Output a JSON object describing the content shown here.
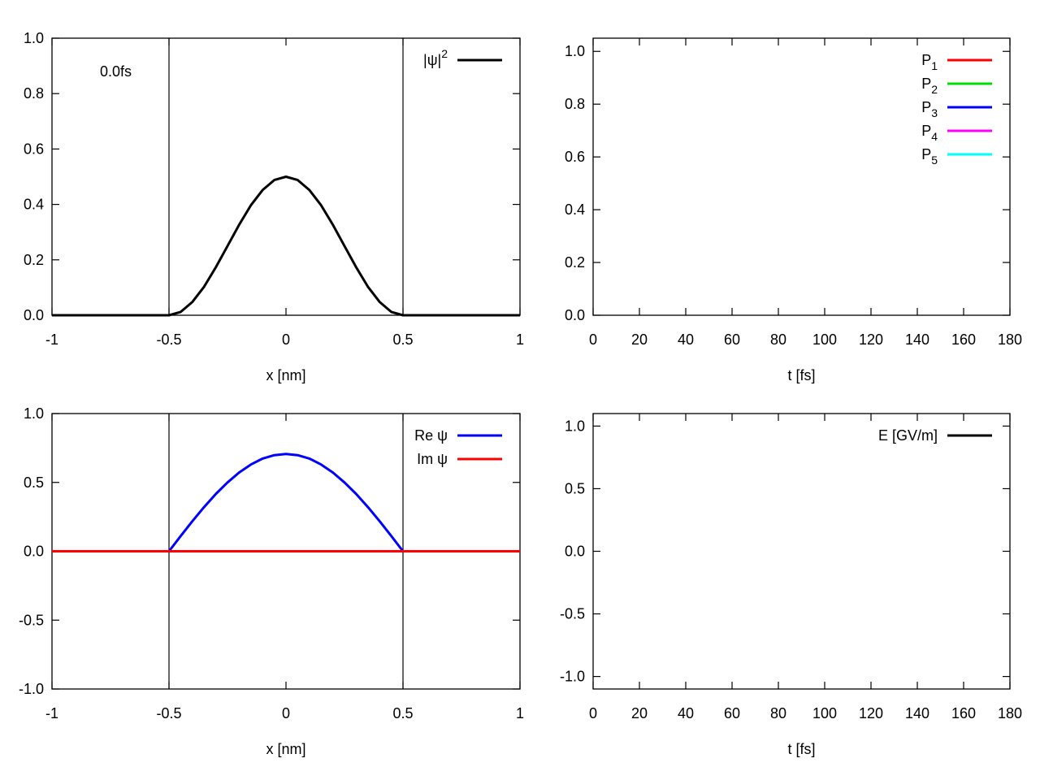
{
  "chart_data": [
    {
      "type": "line",
      "xlabel": "x [nm]",
      "ylabel": "",
      "xlim": [
        -1,
        1
      ],
      "ylim": [
        0,
        1
      ],
      "xticks": [
        "-1",
        "-0.5",
        "0",
        "0.5",
        "1"
      ],
      "xtick_values": [
        -1,
        -0.5,
        0,
        0.5,
        1
      ],
      "yticks": [
        "0.0",
        "0.2",
        "0.4",
        "0.6",
        "0.8",
        "1.0"
      ],
      "ytick_values": [
        0,
        0.2,
        0.4,
        0.6,
        0.8,
        1.0
      ],
      "annotation": "0.0fs",
      "vertical_lines": [
        -0.5,
        0.5
      ],
      "legend_position": "top-right",
      "series": [
        {
          "name": "|ψ|²",
          "legend_main": "|ψ|",
          "legend_sup": "2",
          "color": "#000000",
          "x": [
            -1,
            -0.5,
            -0.45,
            -0.4,
            -0.35,
            -0.3,
            -0.25,
            -0.2,
            -0.15,
            -0.1,
            -0.05,
            0,
            0.05,
            0.1,
            0.15,
            0.2,
            0.25,
            0.3,
            0.35,
            0.4,
            0.45,
            0.5,
            1
          ],
          "y": [
            0,
            0,
            0.012,
            0.048,
            0.103,
            0.173,
            0.25,
            0.327,
            0.397,
            0.452,
            0.488,
            0.5,
            0.488,
            0.452,
            0.397,
            0.327,
            0.25,
            0.173,
            0.103,
            0.048,
            0.012,
            0,
            0
          ]
        }
      ]
    },
    {
      "type": "line",
      "xlabel": "t [fs]",
      "ylabel": "",
      "xlim": [
        0,
        180
      ],
      "ylim": [
        0,
        1.05
      ],
      "xticks": [
        "0",
        "20",
        "40",
        "60",
        "80",
        "100",
        "120",
        "140",
        "160",
        "180"
      ],
      "xtick_values": [
        0,
        20,
        40,
        60,
        80,
        100,
        120,
        140,
        160,
        180
      ],
      "yticks": [
        "0.0",
        "0.2",
        "0.4",
        "0.6",
        "0.8",
        "1.0"
      ],
      "ytick_values": [
        0,
        0.2,
        0.4,
        0.6,
        0.8,
        1.0
      ],
      "legend_position": "top-right",
      "series": [
        {
          "name": "P1",
          "legend_main": "P",
          "legend_sub": "1",
          "color": "#ff0000",
          "x": [],
          "y": []
        },
        {
          "name": "P2",
          "legend_main": "P",
          "legend_sub": "2",
          "color": "#00dd00",
          "x": [],
          "y": []
        },
        {
          "name": "P3",
          "legend_main": "P",
          "legend_sub": "3",
          "color": "#0000ff",
          "x": [],
          "y": []
        },
        {
          "name": "P4",
          "legend_main": "P",
          "legend_sub": "4",
          "color": "#ff00ff",
          "x": [],
          "y": []
        },
        {
          "name": "P5",
          "legend_main": "P",
          "legend_sub": "5",
          "color": "#00ffff",
          "x": [],
          "y": []
        }
      ]
    },
    {
      "type": "line",
      "xlabel": "x [nm]",
      "ylabel": "",
      "xlim": [
        -1,
        1
      ],
      "ylim": [
        -1,
        1
      ],
      "xticks": [
        "-1",
        "-0.5",
        "0",
        "0.5",
        "1"
      ],
      "xtick_values": [
        -1,
        -0.5,
        0,
        0.5,
        1
      ],
      "yticks": [
        "-1.0",
        "-0.5",
        "0.0",
        "0.5",
        "1.0"
      ],
      "ytick_values": [
        -1,
        -0.5,
        0,
        0.5,
        1
      ],
      "vertical_lines": [
        -0.5,
        0.5
      ],
      "legend_position": "top-right",
      "series": [
        {
          "name": "Re ψ",
          "legend_main": "Re ψ",
          "color": "#0000ff",
          "x": [
            -1,
            -0.5,
            -0.45,
            -0.4,
            -0.35,
            -0.3,
            -0.25,
            -0.2,
            -0.15,
            -0.1,
            -0.05,
            0,
            0.05,
            0.1,
            0.15,
            0.2,
            0.25,
            0.3,
            0.35,
            0.4,
            0.45,
            0.5,
            1
          ],
          "y": [
            0,
            0,
            0.111,
            0.219,
            0.321,
            0.416,
            0.5,
            0.572,
            0.63,
            0.673,
            0.698,
            0.707,
            0.698,
            0.673,
            0.63,
            0.572,
            0.5,
            0.416,
            0.321,
            0.219,
            0.111,
            0,
            0
          ]
        },
        {
          "name": "Im ψ",
          "legend_main": "Im ψ",
          "color": "#ff0000",
          "x": [
            -1,
            1
          ],
          "y": [
            0,
            0
          ]
        }
      ]
    },
    {
      "type": "line",
      "xlabel": "t [fs]",
      "ylabel": "",
      "xlim": [
        0,
        180
      ],
      "ylim": [
        -1.1,
        1.1
      ],
      "xticks": [
        "0",
        "20",
        "40",
        "60",
        "80",
        "100",
        "120",
        "140",
        "160",
        "180"
      ],
      "xtick_values": [
        0,
        20,
        40,
        60,
        80,
        100,
        120,
        140,
        160,
        180
      ],
      "yticks": [
        "-1.0",
        "-0.5",
        "0.0",
        "0.5",
        "1.0"
      ],
      "ytick_values": [
        -1,
        -0.5,
        0,
        0.5,
        1
      ],
      "legend_position": "top-right",
      "series": [
        {
          "name": "E [GV/m]",
          "legend_main": "E [GV/m]",
          "color": "#000000",
          "x": [],
          "y": []
        }
      ]
    }
  ]
}
